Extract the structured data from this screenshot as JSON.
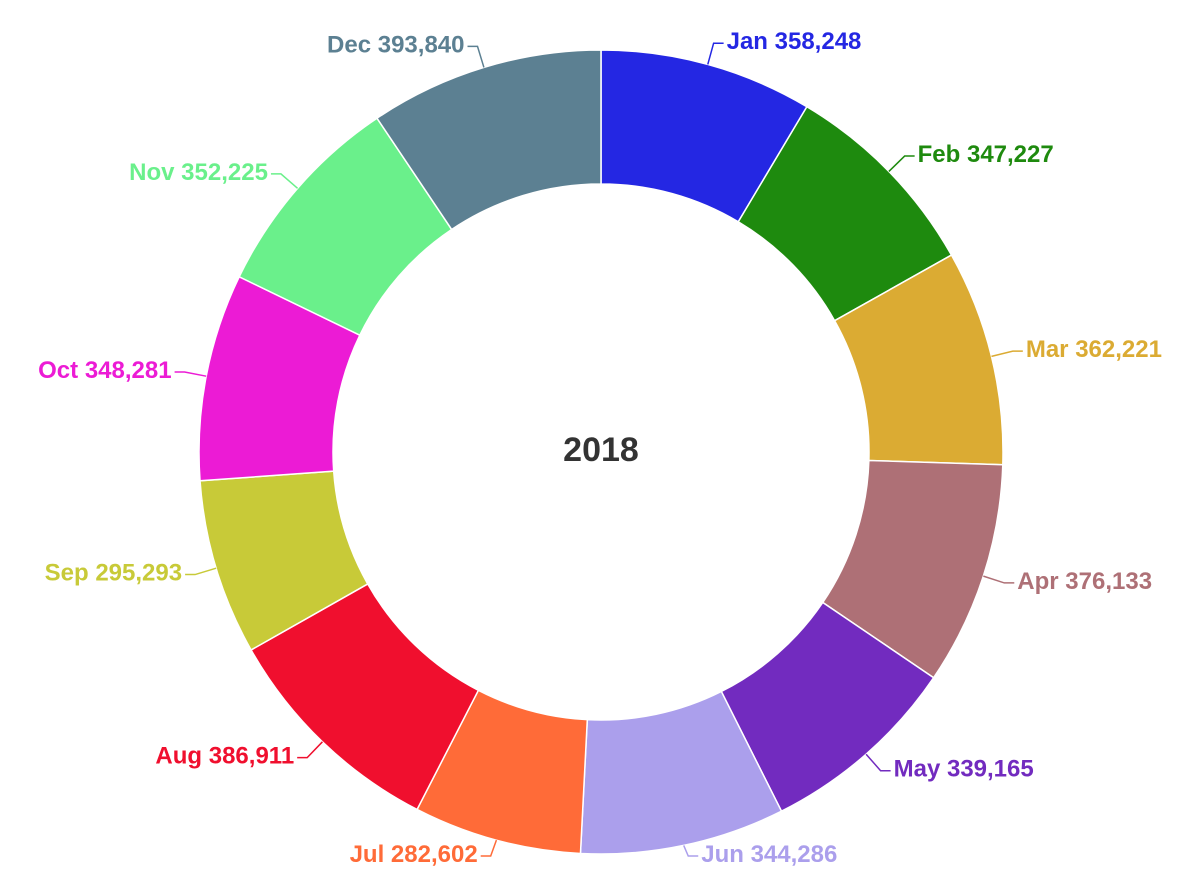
{
  "chart_data": {
    "type": "donut",
    "center_text": "2018",
    "categories": [
      "Jan",
      "Feb",
      "Mar",
      "Apr",
      "May",
      "Jun",
      "Jul",
      "Aug",
      "Sep",
      "Oct",
      "Nov",
      "Dec"
    ],
    "values": [
      358248,
      347227,
      362221,
      376133,
      339165,
      344286,
      282602,
      386911,
      295293,
      348281,
      352225,
      393840
    ],
    "value_labels": [
      "358,248",
      "347,227",
      "362,221",
      "376,133",
      "339,165",
      "344,286",
      "282,602",
      "386,911",
      "295,293",
      "348,281",
      "352,225",
      "393,840"
    ],
    "colors": [
      "#2427e3",
      "#1e8a0e",
      "#dbab33",
      "#ae7076",
      "#722bbf",
      "#ab9fec",
      "#ff6b38",
      "#f00f2e",
      "#c8ca38",
      "#ec1bd5",
      "#6af08b",
      "#5c8092"
    ]
  }
}
